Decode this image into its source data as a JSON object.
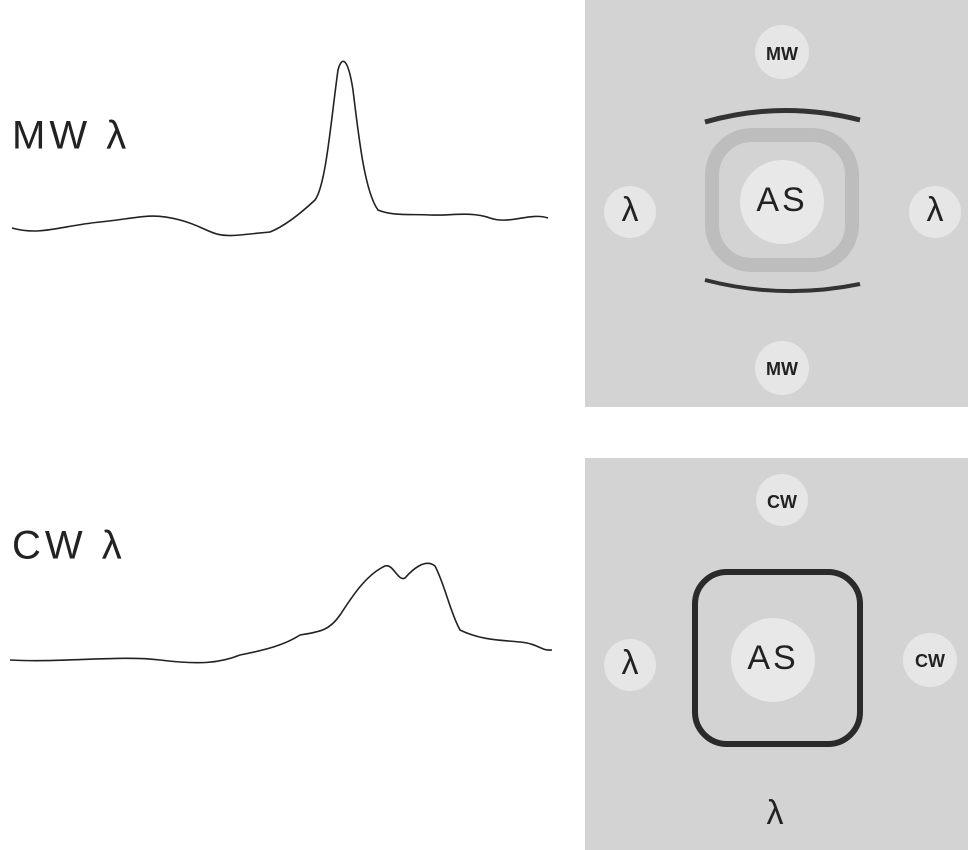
{
  "traces": [
    {
      "label": "MW λ"
    },
    {
      "label": "CW λ"
    }
  ],
  "plates": [
    {
      "top": "MW",
      "left": "λ",
      "center": "AS",
      "right": "λ",
      "bottom": "MW"
    },
    {
      "top": "CW",
      "left": "λ",
      "center": "AS",
      "right": "CW",
      "bottom": "λ"
    }
  ]
}
